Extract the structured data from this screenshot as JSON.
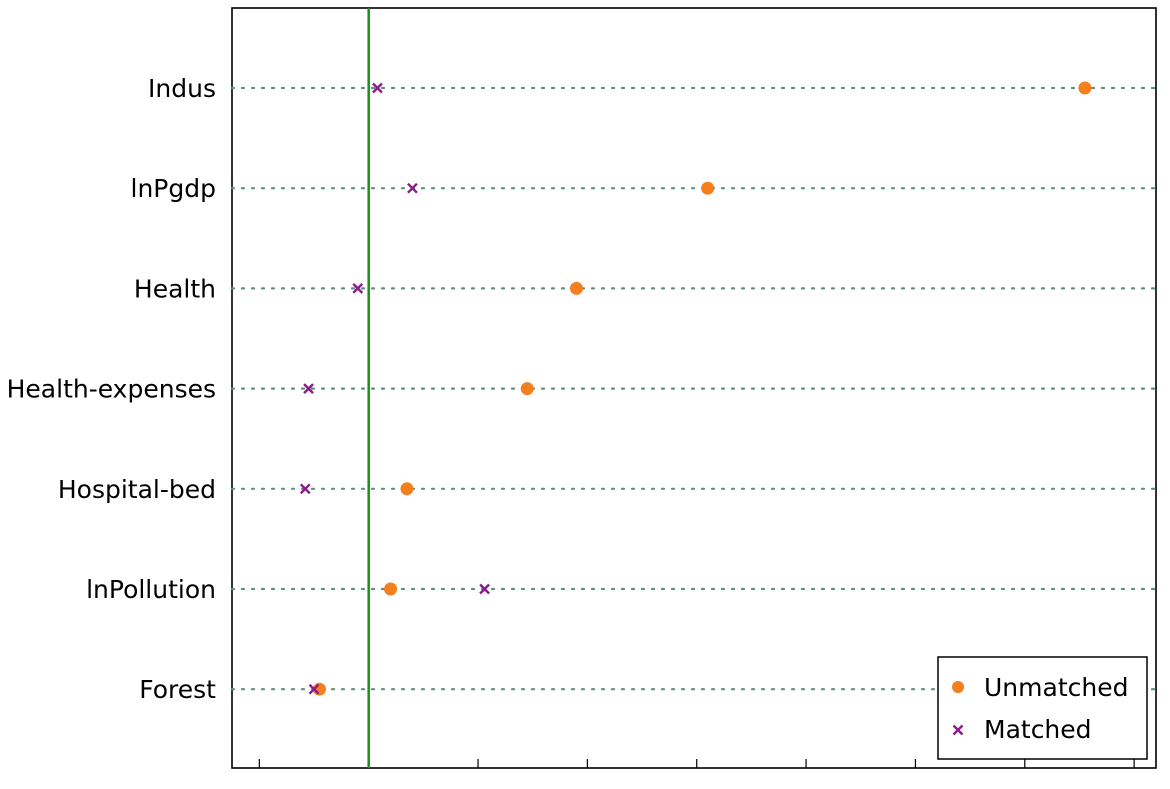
{
  "chart_data": {
    "type": "scatter",
    "categories": [
      "Indus",
      "lnPgdp",
      "Health",
      "Health-expenses",
      "Hospital-bed",
      "lnPollution",
      "Forest"
    ],
    "series": [
      {
        "name": "Unmatched",
        "values": [
          65.5,
          31.0,
          19.0,
          14.5,
          3.5,
          2.0,
          -4.5
        ]
      },
      {
        "name": "Matched",
        "values": [
          0.8,
          4.0,
          -1.0,
          -5.5,
          -5.8,
          10.6,
          -5.0
        ]
      }
    ],
    "reference_line_x": 0,
    "xlim": [
      -12.5,
      72
    ],
    "x_ticks": [
      -10,
      0,
      10,
      20,
      30,
      40,
      50,
      60,
      70
    ],
    "grid": "dotted horizontal",
    "legend_position": "bottom-right",
    "colors": {
      "unmatched": "#f47f1f",
      "matched": "#8b1a8b",
      "reference": "#1a8f1a",
      "grid": "#5f8f80"
    }
  }
}
